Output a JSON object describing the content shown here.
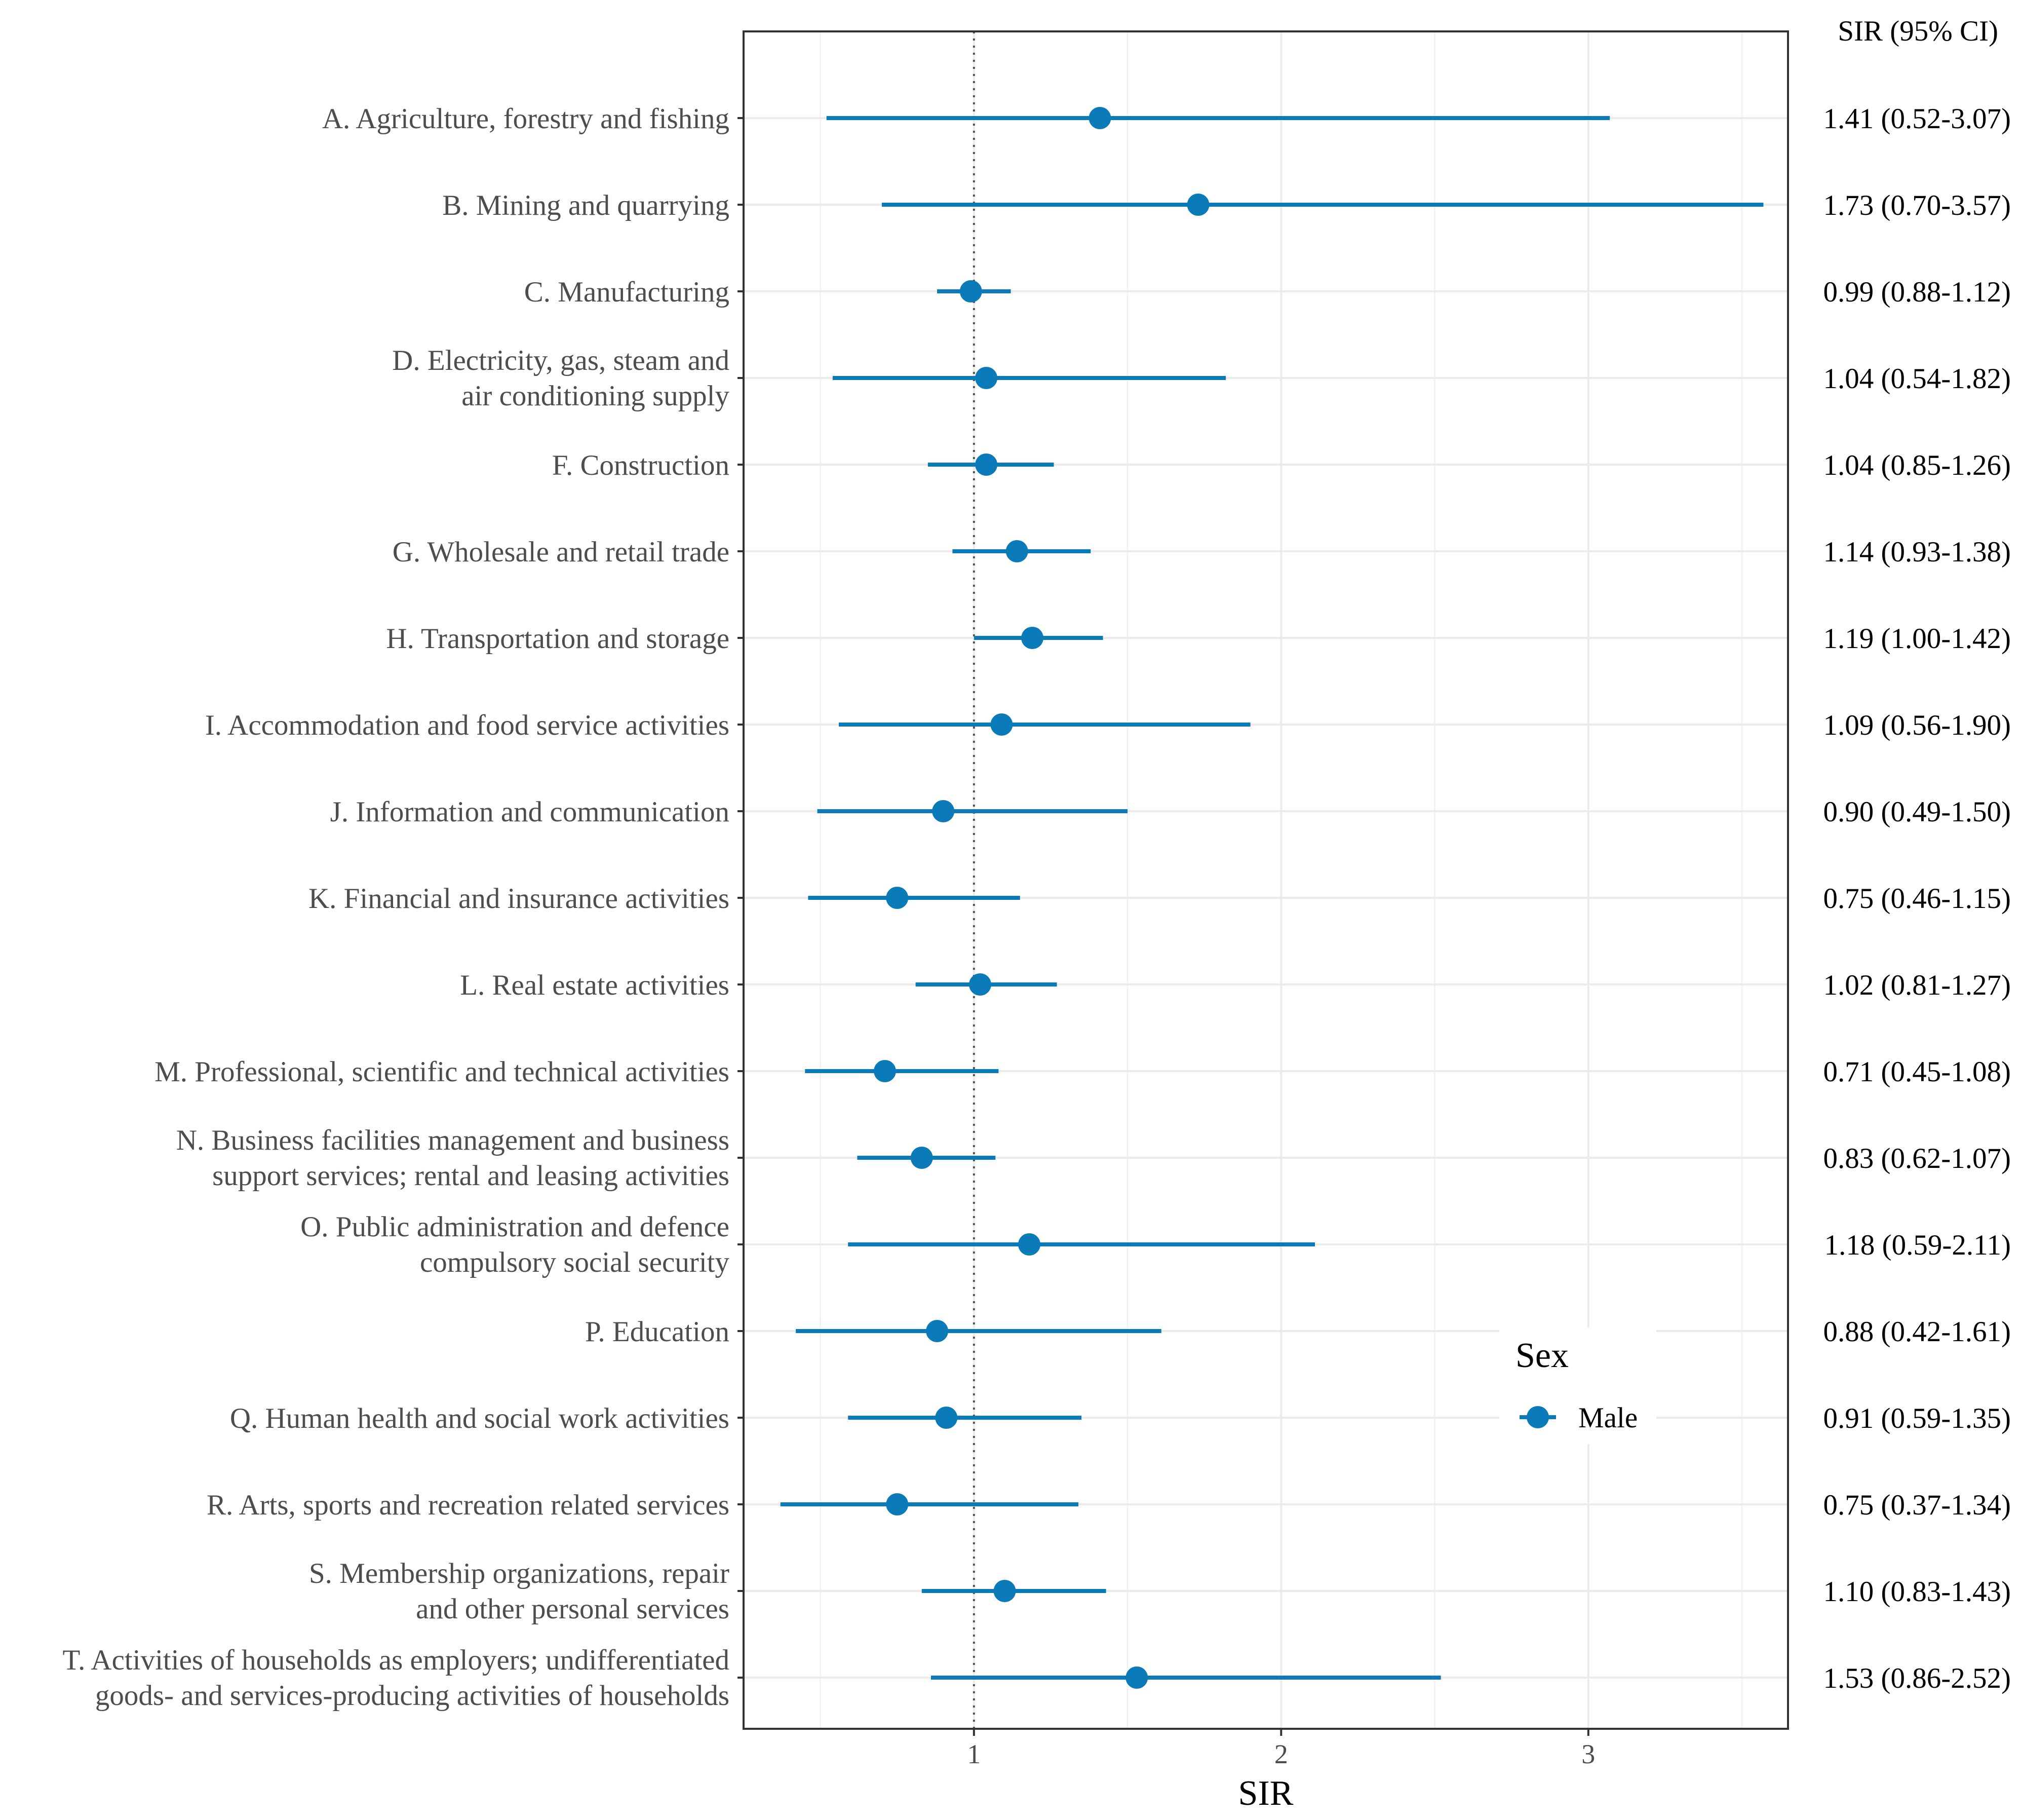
{
  "chart_data": {
    "type": "forest",
    "xlabel": "SIR",
    "column_header": "SIR (95% CI)",
    "xlim": [
      0.25,
      3.65
    ],
    "xticks": [
      1,
      2,
      3
    ],
    "xtick_labels": [
      "1",
      "2",
      "3"
    ],
    "reference_line": 1,
    "grid": true,
    "legend": {
      "title": "Sex",
      "items": [
        "Male"
      ],
      "position": "inside-bottom-right"
    },
    "series_color": "#0b7ab8",
    "rows": [
      {
        "label_lines": [
          "A. Agriculture, forestry and fishing"
        ],
        "sir": 1.41,
        "lo": 0.52,
        "hi": 3.07,
        "text": "1.41 (0.52-3.07)"
      },
      {
        "label_lines": [
          "B. Mining and quarrying"
        ],
        "sir": 1.73,
        "lo": 0.7,
        "hi": 3.57,
        "text": "1.73 (0.70-3.57)"
      },
      {
        "label_lines": [
          "C. Manufacturing"
        ],
        "sir": 0.99,
        "lo": 0.88,
        "hi": 1.12,
        "text": "0.99 (0.88-1.12)"
      },
      {
        "label_lines": [
          "D. Electricity, gas, steam and",
          "air conditioning supply"
        ],
        "sir": 1.04,
        "lo": 0.54,
        "hi": 1.82,
        "text": "1.04 (0.54-1.82)"
      },
      {
        "label_lines": [
          "F. Construction"
        ],
        "sir": 1.04,
        "lo": 0.85,
        "hi": 1.26,
        "text": "1.04 (0.85-1.26)"
      },
      {
        "label_lines": [
          "G. Wholesale and retail trade"
        ],
        "sir": 1.14,
        "lo": 0.93,
        "hi": 1.38,
        "text": "1.14 (0.93-1.38)"
      },
      {
        "label_lines": [
          "H. Transportation and storage"
        ],
        "sir": 1.19,
        "lo": 1.0,
        "hi": 1.42,
        "text": "1.19 (1.00-1.42)"
      },
      {
        "label_lines": [
          "I. Accommodation and food service activities"
        ],
        "sir": 1.09,
        "lo": 0.56,
        "hi": 1.9,
        "text": "1.09 (0.56-1.90)"
      },
      {
        "label_lines": [
          "J. Information and communication"
        ],
        "sir": 0.9,
        "lo": 0.49,
        "hi": 1.5,
        "text": "0.90 (0.49-1.50)"
      },
      {
        "label_lines": [
          "K. Financial and insurance activities"
        ],
        "sir": 0.75,
        "lo": 0.46,
        "hi": 1.15,
        "text": "0.75 (0.46-1.15)"
      },
      {
        "label_lines": [
          "L. Real estate activities"
        ],
        "sir": 1.02,
        "lo": 0.81,
        "hi": 1.27,
        "text": "1.02 (0.81-1.27)"
      },
      {
        "label_lines": [
          "M. Professional, scientific and technical activities"
        ],
        "sir": 0.71,
        "lo": 0.45,
        "hi": 1.08,
        "text": "0.71 (0.45-1.08)"
      },
      {
        "label_lines": [
          "N. Business facilities management and business",
          "support services; rental and leasing activities"
        ],
        "sir": 0.83,
        "lo": 0.62,
        "hi": 1.07,
        "text": "0.83 (0.62-1.07)"
      },
      {
        "label_lines": [
          "O. Public administration and defence",
          "compulsory social security"
        ],
        "sir": 1.18,
        "lo": 0.59,
        "hi": 2.11,
        "text": "1.18 (0.59-2.11)"
      },
      {
        "label_lines": [
          "P. Education"
        ],
        "sir": 0.88,
        "lo": 0.42,
        "hi": 1.61,
        "text": "0.88 (0.42-1.61)"
      },
      {
        "label_lines": [
          "Q. Human health and social work activities"
        ],
        "sir": 0.91,
        "lo": 0.59,
        "hi": 1.35,
        "text": "0.91 (0.59-1.35)"
      },
      {
        "label_lines": [
          "R. Arts, sports and recreation related services"
        ],
        "sir": 0.75,
        "lo": 0.37,
        "hi": 1.34,
        "text": "0.75 (0.37-1.34)"
      },
      {
        "label_lines": [
          "S. Membership organizations, repair",
          "and other personal services"
        ],
        "sir": 1.1,
        "lo": 0.83,
        "hi": 1.43,
        "text": "1.10 (0.83-1.43)"
      },
      {
        "label_lines": [
          "T. Activities of households as employers; undifferentiated",
          "goods- and services-producing activities of households"
        ],
        "sir": 1.53,
        "lo": 0.86,
        "hi": 2.52,
        "text": "1.53 (0.86-2.52)"
      }
    ]
  }
}
